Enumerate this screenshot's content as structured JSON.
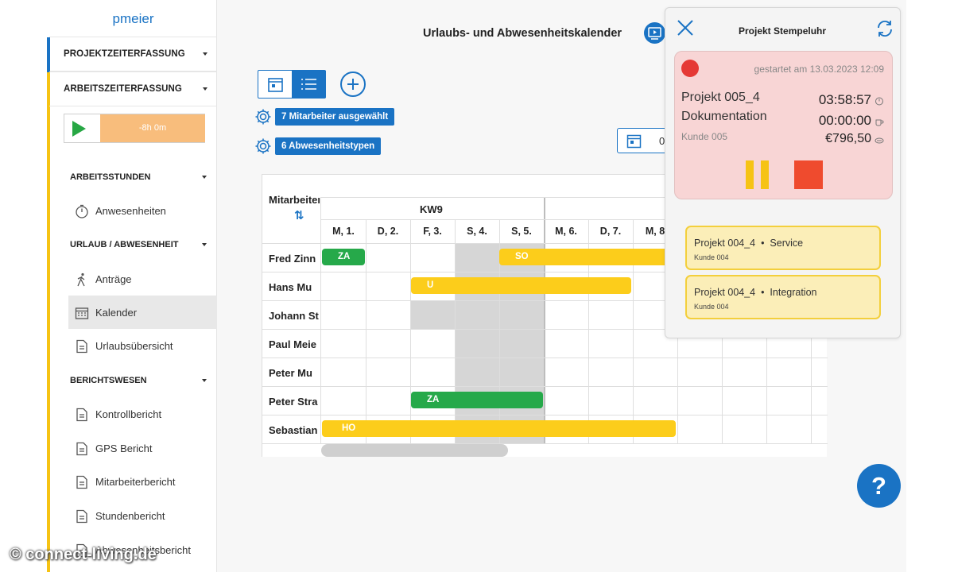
{
  "sidebar": {
    "user": "pmeier",
    "sections": [
      {
        "label": "PROJEKTZEITERFASSUNG"
      },
      {
        "label": "ARBEITSZEITERFASSUNG"
      }
    ],
    "timer_value": "-8h 0m",
    "groups": [
      {
        "label": "ARBEITSSTUNDEN"
      },
      {
        "label": "URLAUB / ABWESENHEIT"
      },
      {
        "label": "BERICHTSWESEN"
      }
    ],
    "items": [
      {
        "label": "Anwesenheiten",
        "icon": "stopwatch-icon"
      },
      {
        "label": "Anträge",
        "icon": "walking-icon"
      },
      {
        "label": "Kalender",
        "icon": "calendar-icon"
      },
      {
        "label": "Urlaubsübersicht",
        "icon": "document-icon"
      },
      {
        "label": "Kontrollbericht",
        "icon": "document-icon"
      },
      {
        "label": "GPS Bericht",
        "icon": "document-icon"
      },
      {
        "label": "Mitarbeiterbericht",
        "icon": "document-icon"
      },
      {
        "label": "Stundenbericht",
        "icon": "document-icon"
      },
      {
        "label": "Abwesenheitsbericht",
        "icon": "document-icon"
      }
    ],
    "accent_blue": "#1a73c4",
    "accent_yellow": "#f6c314"
  },
  "main": {
    "title": "Urlaubs- und Abwesenheitskalender",
    "employees_selected": "7 Mitarbeiter ausgewählt",
    "absence_types": "6 Abwesenheitstypen",
    "date_button_text": "0",
    "calendar": {
      "employee_header": "Mitarbeiter",
      "week_label": "KW9",
      "days": [
        "M, 1.",
        "D, 2.",
        "F, 3.",
        "S, 4.",
        "S, 5.",
        "M, 6.",
        "D, 7.",
        "M, 8"
      ],
      "employees": [
        "Fred Zinn",
        "Hans Mu",
        "Johann St",
        "Paul Meie",
        "Peter Mu",
        "Peter Stra",
        "Sebastian"
      ],
      "events": [
        {
          "row": 0,
          "label": "ZA",
          "color": "green"
        },
        {
          "row": 0,
          "label": "SO",
          "color": "yellow"
        },
        {
          "row": 1,
          "label": "U",
          "color": "yellow"
        },
        {
          "row": 5,
          "label": "ZA",
          "color": "green"
        },
        {
          "row": 6,
          "label": "HO",
          "color": "yellow"
        }
      ]
    }
  },
  "popup": {
    "title": "Projekt Stempeluhr",
    "started": "gestartet am 13.03.2023 12:09",
    "project": "Projekt 005_4",
    "activity": "Dokumentation",
    "customer": "Kunde 005",
    "time_total": "03:58:57",
    "time_pause": "00:00:00",
    "amount": "€796,50",
    "tasks": [
      {
        "project": "Projekt 004_4",
        "activity": "Service",
        "customer": "Kunde 004"
      },
      {
        "project": "Projekt 004_4",
        "activity": "Integration",
        "customer": "Kunde 004"
      }
    ]
  },
  "help_label": "?",
  "watermark": "© connect-living.de"
}
